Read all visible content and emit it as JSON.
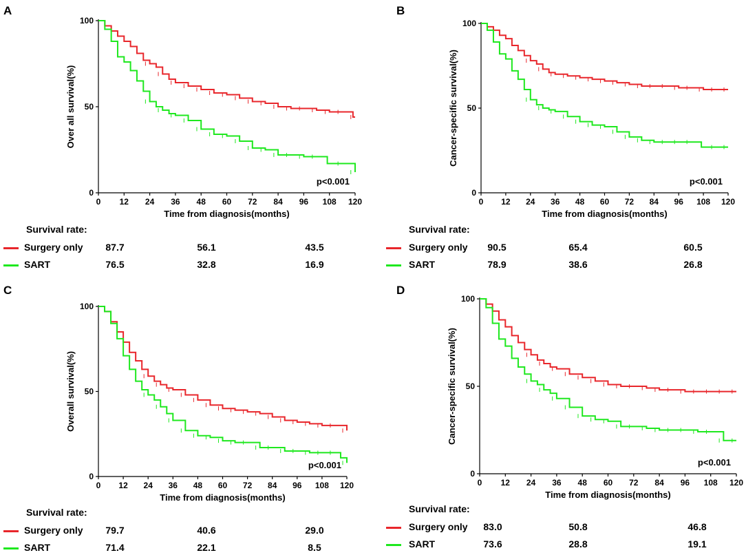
{
  "colors": {
    "surgery": "#e8262b",
    "sart": "#1ee81e"
  },
  "chart_data": [
    {
      "panel": "A",
      "type": "line",
      "title": "",
      "xlabel": "Time from diagnosis(months)",
      "ylabel": "Over all survival(%)",
      "xlim": [
        0,
        120
      ],
      "ylim": [
        0,
        100
      ],
      "xticks": [
        "0",
        "12",
        "24",
        "36",
        "48",
        "60",
        "72",
        "84",
        "96",
        "108",
        "120"
      ],
      "yticks": [
        "0",
        "50",
        "100"
      ],
      "p_value": "p<0.001",
      "series": [
        {
          "name": "Surgery only",
          "color": "#e8262b",
          "x": [
            0,
            3,
            6,
            9,
            12,
            15,
            18,
            21,
            24,
            27,
            30,
            33,
            36,
            42,
            48,
            54,
            60,
            66,
            72,
            78,
            84,
            90,
            96,
            102,
            108,
            114,
            118,
            119,
            120
          ],
          "y": [
            100,
            97,
            94,
            91,
            88,
            85,
            81,
            77,
            75,
            73,
            69,
            66,
            64,
            62,
            60,
            58,
            57,
            55,
            53,
            52,
            50,
            49,
            49,
            48,
            47,
            47,
            47,
            44,
            44
          ]
        },
        {
          "name": "SART",
          "color": "#1ee81e",
          "x": [
            0,
            3,
            6,
            9,
            12,
            15,
            18,
            21,
            24,
            27,
            30,
            33,
            36,
            42,
            48,
            54,
            60,
            66,
            72,
            78,
            84,
            90,
            96,
            102,
            106,
            107,
            114,
            119,
            120
          ],
          "y": [
            100,
            95,
            88,
            79,
            76,
            71,
            65,
            59,
            53,
            50,
            48,
            46,
            45,
            42,
            37,
            34,
            33,
            30,
            26,
            25,
            22,
            22,
            21,
            21,
            21,
            17,
            17,
            17,
            12
          ]
        }
      ],
      "survival_table": {
        "label": "Survival rate:",
        "rows": [
          {
            "name": "Surgery only",
            "values": [
              "87.7",
              "56.1",
              "43.5"
            ]
          },
          {
            "name": "SART",
            "values": [
              "76.5",
              "32.8",
              "16.9"
            ]
          }
        ]
      }
    },
    {
      "panel": "B",
      "type": "line",
      "title": "",
      "xlabel": "Time from diagnosis(months)",
      "ylabel": "Cancer-specific survival(%)",
      "xlim": [
        0,
        120
      ],
      "ylim": [
        0,
        100
      ],
      "xticks": [
        "0",
        "12",
        "24",
        "36",
        "48",
        "60",
        "72",
        "84",
        "96",
        "108",
        "120"
      ],
      "yticks": [
        "0",
        "50",
        "100"
      ],
      "p_value": "p<0.001",
      "series": [
        {
          "name": "Surgery only",
          "color": "#e8262b",
          "x": [
            0,
            3,
            6,
            9,
            12,
            15,
            18,
            21,
            24,
            27,
            30,
            33,
            36,
            42,
            48,
            54,
            60,
            66,
            72,
            78,
            84,
            90,
            96,
            102,
            108,
            114,
            120
          ],
          "y": [
            100,
            98,
            96,
            93,
            91,
            87,
            84,
            81,
            78,
            76,
            73,
            71,
            70,
            69,
            68,
            67,
            66,
            65,
            64,
            63,
            63,
            63,
            62,
            62,
            61,
            61,
            61
          ]
        },
        {
          "name": "SART",
          "color": "#1ee81e",
          "x": [
            0,
            3,
            6,
            9,
            12,
            15,
            18,
            21,
            24,
            27,
            30,
            33,
            36,
            42,
            48,
            54,
            60,
            66,
            72,
            78,
            84,
            90,
            96,
            102,
            106,
            107,
            114,
            120
          ],
          "y": [
            100,
            96,
            89,
            82,
            79,
            72,
            67,
            61,
            55,
            52,
            50,
            49,
            48,
            45,
            42,
            40,
            39,
            36,
            33,
            31,
            30,
            30,
            30,
            30,
            30,
            27,
            27,
            27
          ]
        }
      ],
      "survival_table": {
        "label": "Survival rate:",
        "rows": [
          {
            "name": "Surgery only",
            "values": [
              "90.5",
              "65.4",
              "60.5"
            ]
          },
          {
            "name": "SART",
            "values": [
              "78.9",
              "38.6",
              "26.8"
            ]
          }
        ]
      }
    },
    {
      "panel": "C",
      "type": "line",
      "title": "",
      "xlabel": "Time from diagnosis(months)",
      "ylabel": "Overall survival(%)",
      "xlim": [
        0,
        120
      ],
      "ylim": [
        0,
        100
      ],
      "xticks": [
        "0",
        "12",
        "24",
        "36",
        "48",
        "60",
        "72",
        "84",
        "96",
        "108",
        "120"
      ],
      "yticks": [
        "0",
        "50",
        "100"
      ],
      "p_value": "p<0.001",
      "series": [
        {
          "name": "Surgery only",
          "color": "#e8262b",
          "x": [
            0,
            3,
            6,
            9,
            12,
            15,
            18,
            21,
            24,
            27,
            30,
            33,
            36,
            42,
            48,
            54,
            60,
            66,
            72,
            78,
            84,
            90,
            96,
            102,
            108,
            114,
            119,
            120
          ],
          "y": [
            100,
            97,
            91,
            85,
            79,
            73,
            68,
            63,
            59,
            56,
            54,
            52,
            51,
            48,
            45,
            42,
            40,
            39,
            38,
            37,
            35,
            33,
            32,
            31,
            30,
            30,
            30,
            27
          ]
        },
        {
          "name": "SART",
          "color": "#1ee81e",
          "x": [
            0,
            3,
            6,
            9,
            12,
            15,
            18,
            21,
            24,
            27,
            30,
            33,
            36,
            42,
            48,
            54,
            60,
            66,
            72,
            78,
            84,
            90,
            96,
            102,
            108,
            114,
            117,
            119,
            120
          ],
          "y": [
            100,
            97,
            90,
            81,
            71,
            63,
            56,
            51,
            48,
            45,
            41,
            37,
            33,
            27,
            24,
            23,
            21,
            20,
            20,
            17,
            17,
            15,
            15,
            14,
            14,
            14,
            11,
            11,
            8
          ]
        }
      ],
      "survival_table": {
        "label": "Survival rate:",
        "rows": [
          {
            "name": "Surgery only",
            "values": [
              "79.7",
              "40.6",
              "29.0"
            ]
          },
          {
            "name": "SART",
            "values": [
              "71.4",
              "22.1",
              "8.5"
            ]
          }
        ]
      }
    },
    {
      "panel": "D",
      "type": "line",
      "title": "",
      "xlabel": "Time from diagnosis(months)",
      "ylabel": "Cancer-specific survival(%)",
      "xlim": [
        0,
        120
      ],
      "ylim": [
        0,
        100
      ],
      "xticks": [
        "0",
        "12",
        "24",
        "36",
        "48",
        "60",
        "72",
        "84",
        "96",
        "108",
        "120"
      ],
      "yticks": [
        "0",
        "50",
        "100"
      ],
      "p_value": "p<0.001",
      "series": [
        {
          "name": "Surgery only",
          "color": "#e8262b",
          "x": [
            0,
            3,
            6,
            9,
            12,
            15,
            18,
            21,
            24,
            27,
            30,
            33,
            36,
            42,
            48,
            54,
            60,
            66,
            72,
            78,
            84,
            90,
            96,
            102,
            108,
            114,
            120
          ],
          "y": [
            100,
            97,
            93,
            88,
            84,
            79,
            75,
            71,
            68,
            65,
            63,
            61,
            60,
            57,
            55,
            53,
            51,
            50,
            50,
            49,
            48,
            48,
            47,
            47,
            47,
            47,
            47
          ]
        },
        {
          "name": "SART",
          "color": "#1ee81e",
          "x": [
            0,
            3,
            6,
            9,
            12,
            15,
            18,
            21,
            24,
            27,
            30,
            33,
            36,
            42,
            48,
            54,
            60,
            66,
            72,
            78,
            84,
            90,
            96,
            102,
            108,
            113,
            114,
            120
          ],
          "y": [
            100,
            95,
            86,
            77,
            73,
            66,
            61,
            57,
            53,
            51,
            48,
            46,
            43,
            38,
            33,
            31,
            30,
            27,
            27,
            26,
            25,
            25,
            25,
            24,
            24,
            24,
            19,
            19
          ]
        }
      ],
      "survival_table": {
        "label": "Survival rate:",
        "rows": [
          {
            "name": "Surgery only",
            "values": [
              "83.0",
              "50.8",
              "46.8"
            ]
          },
          {
            "name": "SART",
            "values": [
              "73.6",
              "28.8",
              "19.1"
            ]
          }
        ]
      }
    }
  ]
}
